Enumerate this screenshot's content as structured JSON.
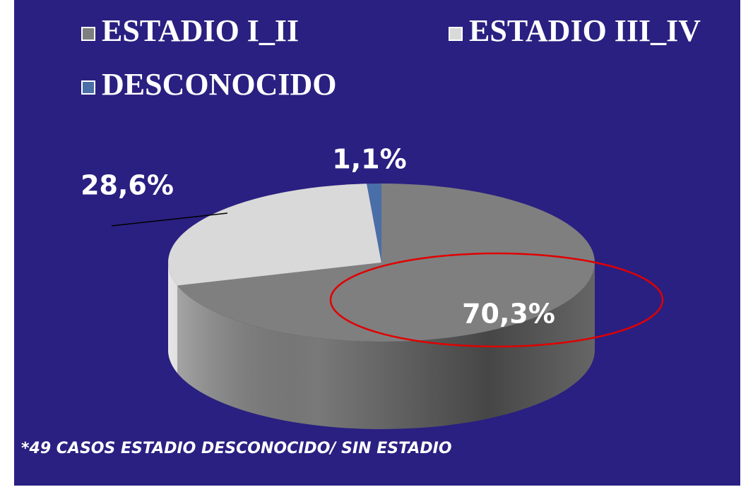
{
  "chart_data": {
    "type": "pie3d",
    "categories": [
      "ESTADIO I_II",
      "ESTADIO III_IV",
      "DESCONOCIDO"
    ],
    "values": [
      70.3,
      28.6,
      1.1
    ],
    "value_labels": [
      "70,3%",
      "28,6%",
      "1,1%"
    ],
    "colors": [
      "#7f7f7f",
      "#d9d9d9",
      "#4a6ea8"
    ],
    "annotation": "*49 CASOS  ESTADIO DESCONOCIDO/ SIN ESTADIO",
    "legend": "top"
  }
}
